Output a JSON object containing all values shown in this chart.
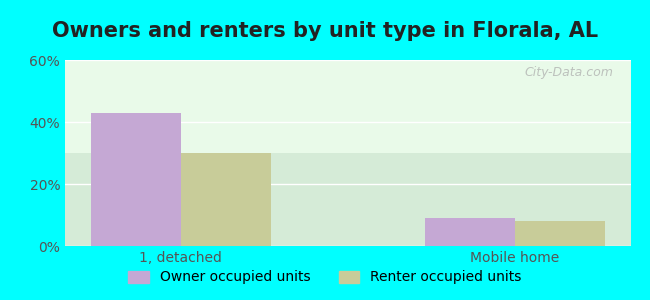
{
  "title": "Owners and renters by unit type in Florala, AL",
  "categories": [
    "1, detached",
    "Mobile home"
  ],
  "owner_values": [
    43,
    9
  ],
  "renter_values": [
    30,
    8
  ],
  "owner_color": "#c5a8d4",
  "renter_color": "#c8cc99",
  "background_color": "#e8fae8",
  "outer_background": "#00ffff",
  "ylim": [
    0,
    60
  ],
  "yticks": [
    0,
    20,
    40,
    60
  ],
  "ytick_labels": [
    "0%",
    "20%",
    "40%",
    "60%"
  ],
  "bar_width": 0.35,
  "legend_owner": "Owner occupied units",
  "legend_renter": "Renter occupied units",
  "watermark": "City-Data.com",
  "title_fontsize": 15,
  "tick_fontsize": 10,
  "legend_fontsize": 10
}
